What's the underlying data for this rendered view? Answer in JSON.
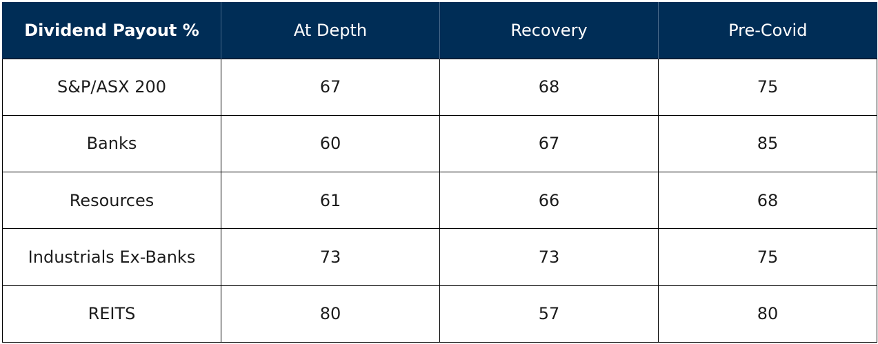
{
  "chart_data": {
    "type": "table",
    "columns": [
      "Dividend Payout %",
      "At Depth",
      "Recovery",
      "Pre-Covid"
    ],
    "rows": [
      {
        "label": "S&P/ASX 200",
        "values": [
          "67",
          "68",
          "75"
        ]
      },
      {
        "label": "Banks",
        "values": [
          "60",
          "67",
          "85"
        ]
      },
      {
        "label": "Resources",
        "values": [
          "61",
          "66",
          "68"
        ]
      },
      {
        "label": "Industrials Ex-Banks",
        "values": [
          "73",
          "73",
          "75"
        ]
      },
      {
        "label": "REITS",
        "values": [
          "80",
          "57",
          "80"
        ]
      }
    ]
  },
  "colors": {
    "header_background": "#002d56",
    "header_text": "#ffffff",
    "cell_text": "#1c1c1c",
    "grid": "#000000"
  }
}
